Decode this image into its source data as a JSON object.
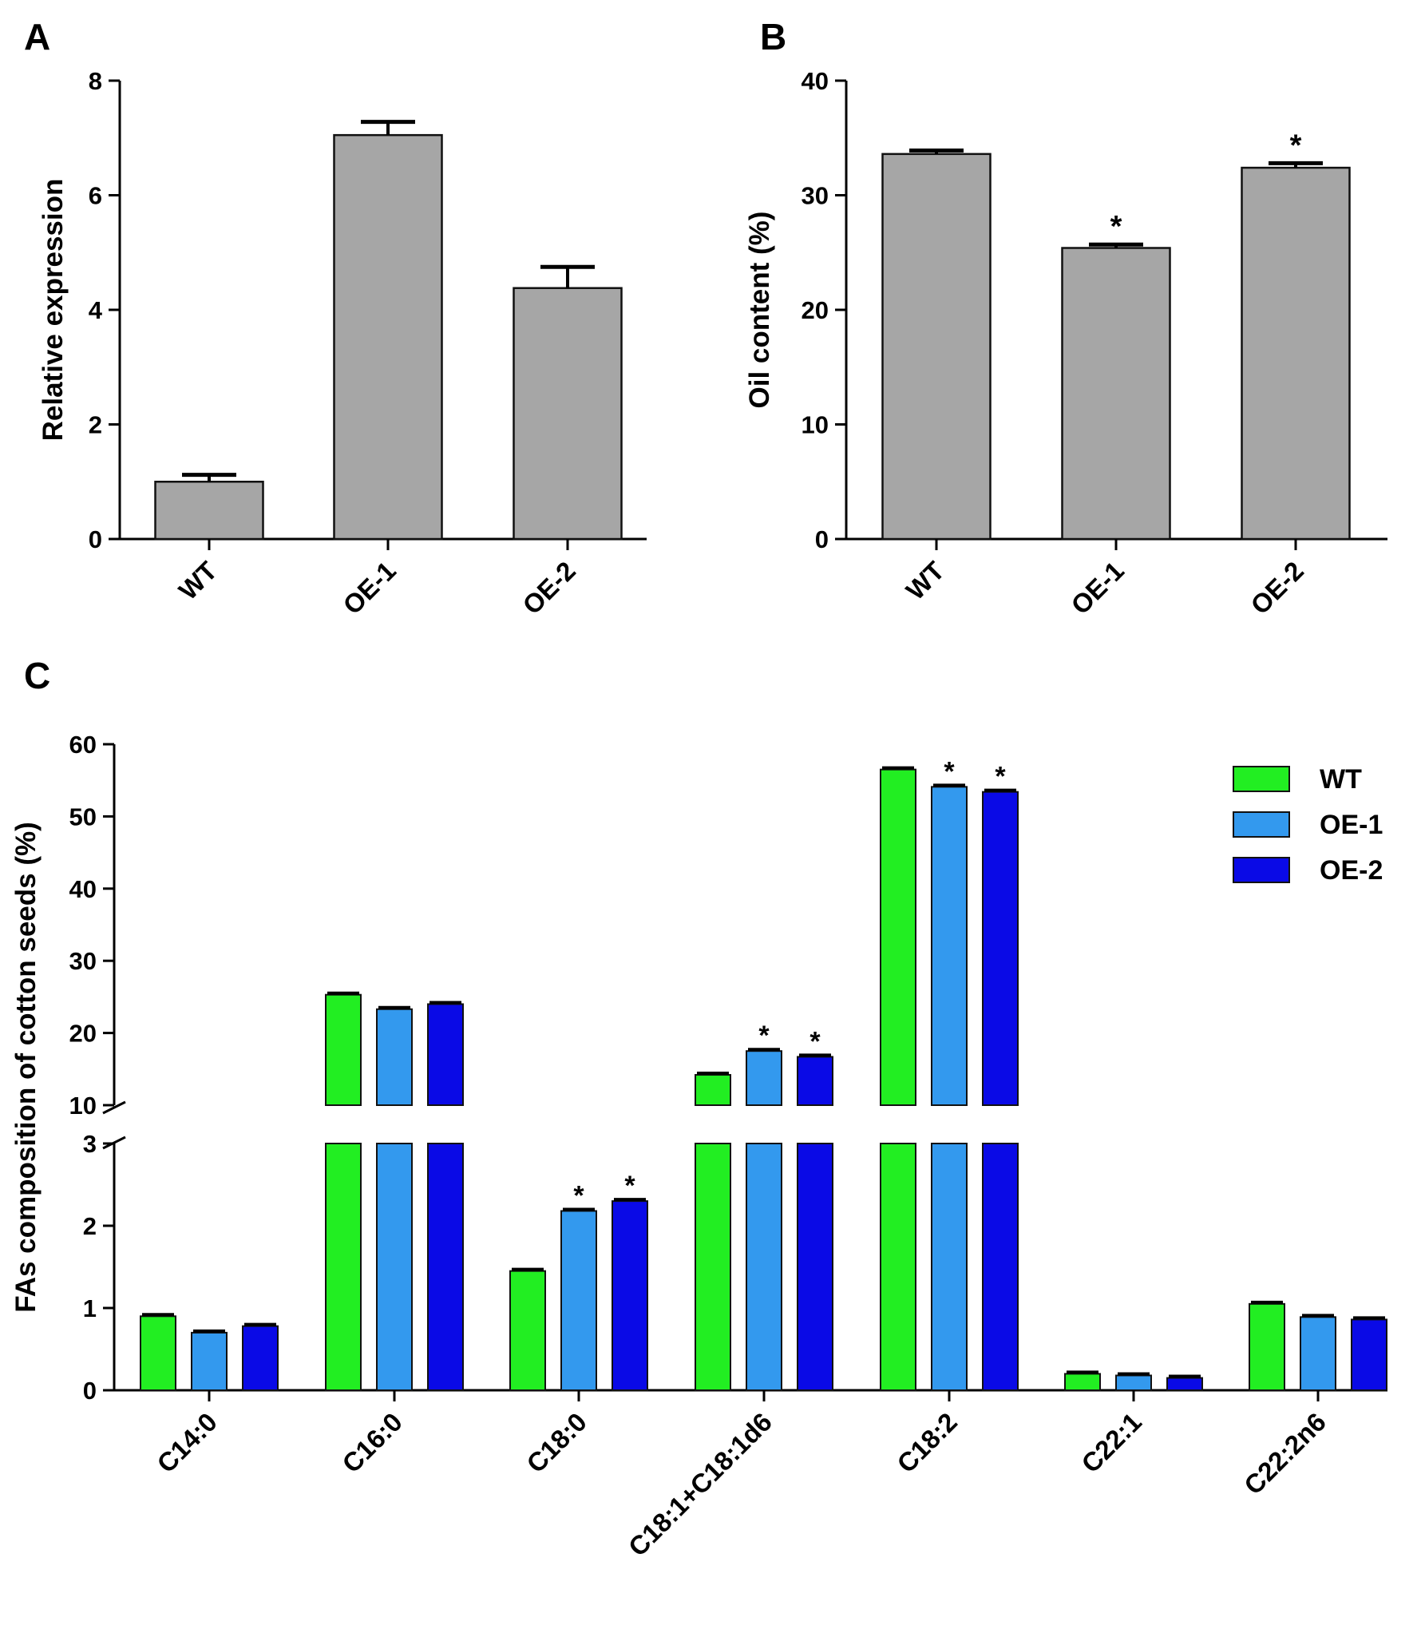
{
  "chart_data": [
    {
      "panel": "A",
      "type": "bar",
      "categories": [
        "WT",
        "OE-1",
        "OE-2"
      ],
      "values": [
        1.0,
        7.05,
        4.38
      ],
      "errors": [
        0.12,
        0.23,
        0.37
      ],
      "significance": [
        "",
        "",
        ""
      ],
      "ylabel": "Relative expression",
      "xlabel": "",
      "ylim": [
        0,
        8
      ],
      "yticks": [
        0,
        2,
        4,
        6,
        8
      ],
      "colors": {
        "bar": "#a6a6a6"
      }
    },
    {
      "panel": "B",
      "type": "bar",
      "categories": [
        "WT",
        "OE-1",
        "OE-2"
      ],
      "values": [
        33.6,
        25.4,
        32.4
      ],
      "errors": [
        0.3,
        0.3,
        0.4
      ],
      "significance": [
        "",
        "*",
        "*"
      ],
      "ylabel": "Oil content (%)",
      "xlabel": "",
      "ylim": [
        0,
        40
      ],
      "yticks": [
        0,
        10,
        20,
        30,
        40
      ],
      "colors": {
        "bar": "#a6a6a6"
      }
    },
    {
      "panel": "C",
      "type": "bar",
      "categories": [
        "C14:0",
        "C16:0",
        "C18:0",
        "C18:1+C18:1d6",
        "C18:2",
        "C22:1",
        "C22:2n6"
      ],
      "series": [
        {
          "name": "WT",
          "color": "#22ee22",
          "values": [
            0.9,
            25.3,
            1.45,
            14.2,
            56.5,
            0.2,
            1.05
          ],
          "significance": [
            "",
            "",
            "",
            "",
            "",
            "",
            ""
          ]
        },
        {
          "name": "OE-1",
          "color": "#3399ee",
          "values": [
            0.7,
            23.3,
            2.18,
            17.5,
            54.1,
            0.18,
            0.89
          ],
          "significance": [
            "",
            "",
            "*",
            "*",
            "*",
            "",
            ""
          ]
        },
        {
          "name": "OE-2",
          "color": "#0a0ae6",
          "values": [
            0.78,
            24.0,
            2.3,
            16.7,
            53.4,
            0.15,
            0.86
          ],
          "significance": [
            "",
            "",
            "*",
            "*",
            "*",
            "",
            ""
          ]
        }
      ],
      "ylabel": "FAs composition of cotton seeds (%)",
      "xlabel": "",
      "y_axis_break": {
        "lower_range": [
          0,
          3
        ],
        "upper_range": [
          10,
          60
        ]
      },
      "yticks_lower": [
        0,
        1,
        2,
        3
      ],
      "yticks_upper": [
        10,
        20,
        30,
        40,
        50,
        60
      ],
      "legend_position": "top-right"
    }
  ]
}
